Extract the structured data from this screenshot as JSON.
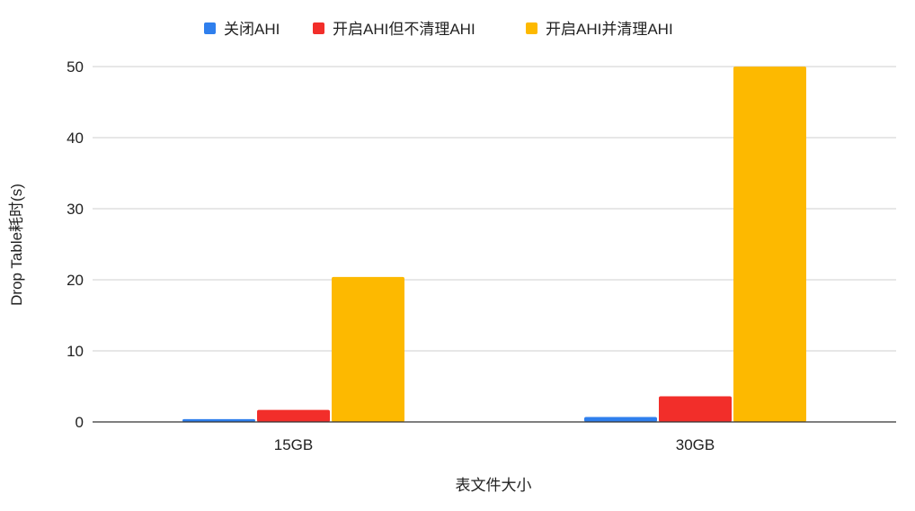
{
  "chart_data": {
    "type": "bar",
    "title": "",
    "xlabel": "表文件大小",
    "ylabel": "Drop Table耗时(s)",
    "categories": [
      "15GB",
      "30GB"
    ],
    "series": [
      {
        "name": "关闭AHI",
        "color": "#2f7fed",
        "values": [
          0.4,
          0.7
        ]
      },
      {
        "name": "开启AHI但不清理AHI",
        "color": "#f22e2a",
        "values": [
          1.7,
          3.6
        ]
      },
      {
        "name": "开启AHI并清理AHI",
        "color": "#fdb900",
        "values": [
          20.4,
          50
        ]
      }
    ],
    "ylim": [
      0,
      50
    ],
    "yticks": [
      0,
      10,
      20,
      30,
      40,
      50
    ],
    "grid": true,
    "legend_position": "top"
  }
}
